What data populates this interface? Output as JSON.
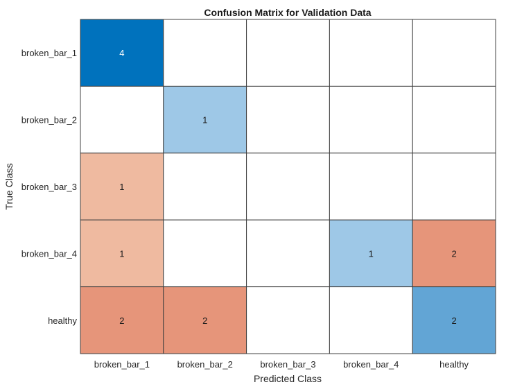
{
  "chart_data": {
    "type": "heatmap",
    "title": "Confusion Matrix for Validation Data",
    "xlabel": "Predicted Class",
    "ylabel": "True Class",
    "x_categories": [
      "broken_bar_1",
      "broken_bar_2",
      "broken_bar_3",
      "broken_bar_4",
      "healthy"
    ],
    "y_categories": [
      "broken_bar_1",
      "broken_bar_2",
      "broken_bar_3",
      "broken_bar_4",
      "healthy"
    ],
    "values": [
      [
        4,
        0,
        0,
        0,
        0
      ],
      [
        0,
        1,
        0,
        0,
        0
      ],
      [
        1,
        0,
        0,
        0,
        0
      ],
      [
        1,
        0,
        0,
        1,
        2
      ],
      [
        2,
        2,
        0,
        0,
        2
      ]
    ],
    "zero_cells_labeled": false,
    "colors": {
      "correct_max": "#0072bd",
      "correct_low": "#9ec8e7",
      "correct_mid": "#62a5d5",
      "error_low": "#efbaa0",
      "error_high": "#e6957a",
      "empty": "#ffffff",
      "grid_line": "#404040",
      "text_dark": "#1a1a1a",
      "text_light": "#ffffff"
    }
  }
}
